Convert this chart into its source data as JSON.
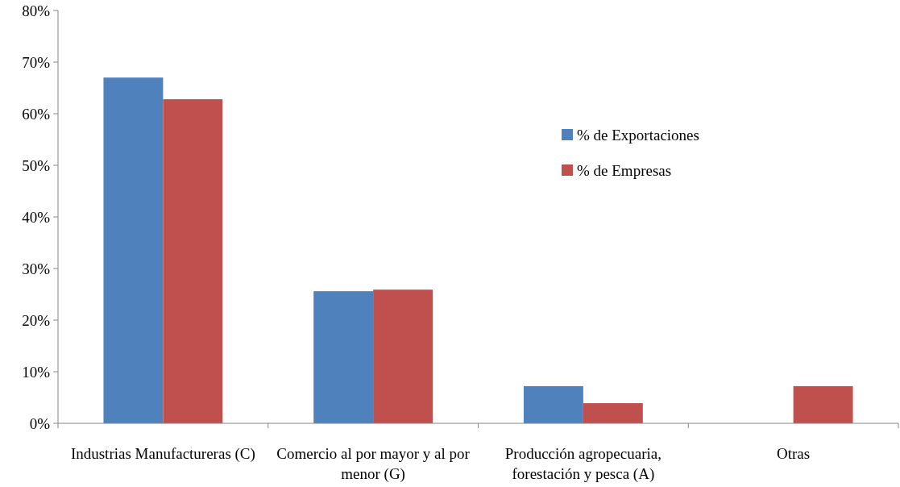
{
  "chart_data": {
    "type": "bar",
    "categories": [
      "Industrias Manufactureras (C)",
      "Comercio al por mayor y al por menor (G)",
      "Producción agropecuaria, forestación y pesca (A)",
      "Otras"
    ],
    "series": [
      {
        "name": "% de Exportaciones",
        "color": "#4f81bd",
        "values": [
          67.0,
          25.6,
          7.2,
          0
        ]
      },
      {
        "name": "% de Empresas",
        "color": "#c0504d",
        "values": [
          62.8,
          25.9,
          3.9,
          7.2
        ]
      }
    ],
    "ylim": [
      0,
      80
    ],
    "yticks": [
      {
        "value": 0,
        "label": "0%"
      },
      {
        "value": 10,
        "label": "10%"
      },
      {
        "value": 20,
        "label": "20%"
      },
      {
        "value": 30,
        "label": "30%"
      },
      {
        "value": 40,
        "label": "40%"
      },
      {
        "value": 50,
        "label": "50%"
      },
      {
        "value": 60,
        "label": "60%"
      },
      {
        "value": 70,
        "label": "70%"
      },
      {
        "value": 80,
        "label": "80%"
      }
    ],
    "grid": false,
    "legend": "right"
  }
}
